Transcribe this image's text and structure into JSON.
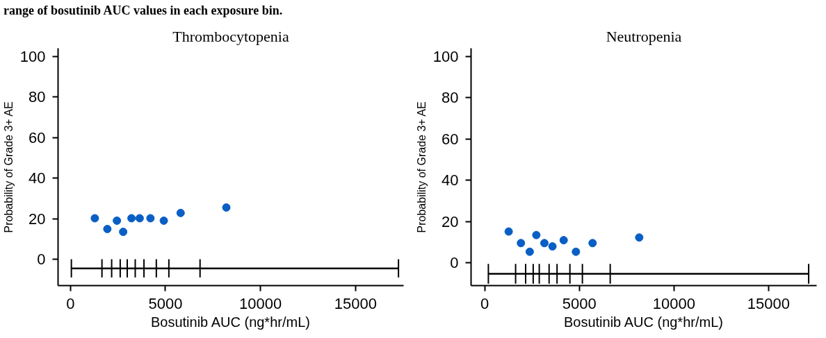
{
  "chart_data": [
    {
      "type": "scatter",
      "title": "Thrombocytopenia",
      "xlabel": "Bosutinib AUC (ng*hr/mL)",
      "ylabel": "Probability of Grade 3+ AE",
      "annotations": [
        "range of bosutinib AUC values in each exposure bin."
      ],
      "xlim": [
        -650,
        17530
      ],
      "xticks": [
        0,
        5000,
        10000,
        15000
      ],
      "ylim": [
        -13,
        104
      ],
      "yticks": [
        0,
        20,
        40,
        60,
        80,
        100
      ],
      "grid": false,
      "series": [
        {
          "marker": "circle",
          "color": "#0a5fc4",
          "x": [
            1285,
            1943,
            2446,
            2775,
            3213,
            3644,
            4211,
            4914,
            5799,
            8203
          ],
          "values": [
            20.2,
            14.9,
            19.0,
            13.5,
            20.2,
            20.2,
            20.2,
            19.0,
            22.8,
            25.5
          ]
        },
        {
          "type": "line",
          "marker": "none",
          "color": "#000000",
          "x": [
            50,
            1660,
            2170,
            2620,
            2990,
            3410,
            3870,
            4520,
            5180,
            6820,
            17260
          ],
          "values": [
            -4.5,
            -4.5,
            -4.5,
            -4.5,
            -4.5,
            -4.5,
            -4.5,
            -4.5,
            -4.5,
            -4.5,
            -4.5
          ],
          "errors": [
            4.5,
            4.5,
            4.5,
            4.5,
            4.5,
            4.5,
            4.5,
            4.5,
            4.5,
            4.5,
            4.5
          ]
        }
      ]
    },
    {
      "type": "scatter",
      "title": "Neutropenia",
      "xlabel": "Bosutinib AUC (ng*hr/mL)",
      "ylabel": "Probability of Grade 3+ AE",
      "xlim": [
        -725,
        17540
      ],
      "xticks": [
        0,
        5000,
        10000,
        15000
      ],
      "ylim": [
        -11,
        104
      ],
      "yticks": [
        0,
        20,
        40,
        60,
        80,
        100
      ],
      "grid": false,
      "series": [
        {
          "marker": "circle",
          "color": "#0a5fc4",
          "x": [
            1264,
            1911,
            2376,
            2725,
            3151,
            3578,
            4171,
            4818,
            5698,
            8163
          ],
          "values": [
            15.2,
            9.6,
            5.4,
            13.5,
            9.6,
            8.0,
            11.0,
            5.4,
            9.6,
            12.3
          ]
        },
        {
          "type": "line",
          "marker": "none",
          "color": "#000000",
          "x": [
            190,
            1630,
            2160,
            2560,
            2880,
            3400,
            3820,
            4500,
            5160,
            6630,
            17120
          ],
          "values": [
            -5.3,
            -5.3,
            -5.3,
            -5.3,
            -5.3,
            -5.3,
            -5.3,
            -5.3,
            -5.3,
            -5.3,
            -5.3
          ],
          "errors": [
            4.8,
            4.8,
            4.8,
            4.8,
            4.8,
            4.8,
            4.8,
            4.8,
            4.8,
            4.8,
            4.8
          ]
        }
      ]
    }
  ]
}
